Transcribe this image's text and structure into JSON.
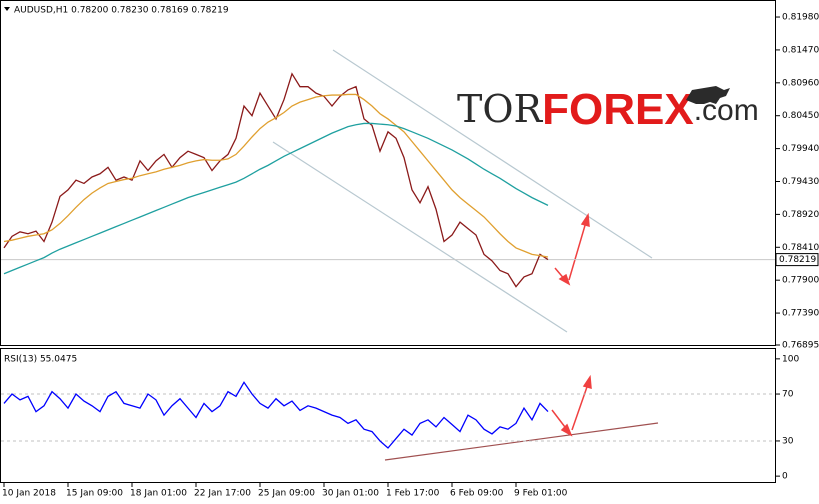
{
  "chart_data": [
    {
      "type": "line",
      "title": "AUDUSD,H1  0.78200 0.78230 0.78169 0.78219",
      "categories": [
        "10 Jan 2018",
        null,
        null,
        null,
        null,
        null,
        null,
        null,
        "15 Jan 09:00",
        null,
        null,
        null,
        null,
        null,
        null,
        null,
        "18 Jan 01:00",
        null,
        null,
        null,
        null,
        null,
        null,
        null,
        "22 Jan 17:00",
        null,
        null,
        null,
        null,
        null,
        null,
        null,
        "25 Jan 09:00",
        null,
        null,
        null,
        null,
        null,
        null,
        null,
        "30 Jan 01:00",
        null,
        null,
        null,
        null,
        null,
        null,
        null,
        "1 Feb 17:00",
        null,
        null,
        null,
        null,
        null,
        null,
        null,
        "6 Feb 09:00",
        null,
        null,
        null,
        null,
        null,
        null,
        null,
        "9 Feb 01:00",
        null,
        null,
        null,
        null
      ],
      "series": [
        {
          "color": "#8b1a1a",
          "values": [
            0.784,
            0.7858,
            0.7865,
            0.7862,
            0.7866,
            0.785,
            0.788,
            0.792,
            0.793,
            0.7945,
            0.794,
            0.795,
            0.7955,
            0.7965,
            0.7945,
            0.795,
            0.7945,
            0.7975,
            0.796,
            0.7975,
            0.7985,
            0.7965,
            0.798,
            0.799,
            0.7985,
            0.798,
            0.796,
            0.7975,
            0.7985,
            0.801,
            0.806,
            0.8045,
            0.808,
            0.806,
            0.804,
            0.807,
            0.811,
            0.809,
            0.809,
            0.808,
            0.8075,
            0.806,
            0.8075,
            0.8085,
            0.809,
            0.804,
            0.803,
            0.799,
            0.802,
            0.801,
            0.798,
            0.793,
            0.791,
            0.7935,
            0.79,
            0.785,
            0.786,
            0.788,
            0.787,
            0.786,
            0.783,
            0.782,
            0.7805,
            0.78,
            0.778,
            0.7795,
            0.78,
            0.783,
            0.7822
          ]
        },
        {
          "color": "#e0a030",
          "values": [
            0.785,
            0.7852,
            0.7855,
            0.7858,
            0.786,
            0.7862,
            0.7868,
            0.7878,
            0.789,
            0.7903,
            0.7915,
            0.7925,
            0.7933,
            0.794,
            0.7943,
            0.7946,
            0.7948,
            0.7952,
            0.7955,
            0.7958,
            0.7962,
            0.7965,
            0.7968,
            0.7972,
            0.7975,
            0.7977,
            0.7976,
            0.7976,
            0.7978,
            0.7985,
            0.7998,
            0.8012,
            0.8025,
            0.8035,
            0.8042,
            0.805,
            0.806,
            0.8066,
            0.807,
            0.8074,
            0.8076,
            0.8077,
            0.8077,
            0.8078,
            0.8078,
            0.807,
            0.806,
            0.8048,
            0.804,
            0.803,
            0.802,
            0.8005,
            0.799,
            0.7975,
            0.796,
            0.7945,
            0.793,
            0.7918,
            0.7908,
            0.7898,
            0.7888,
            0.7875,
            0.7862,
            0.785,
            0.784,
            0.7835,
            0.783,
            0.7828,
            0.7826
          ]
        },
        {
          "color": "#1fa0a0",
          "values": [
            0.78,
            0.7805,
            0.781,
            0.7815,
            0.782,
            0.7825,
            0.7832,
            0.7838,
            0.7843,
            0.7848,
            0.7853,
            0.7858,
            0.7863,
            0.7868,
            0.7873,
            0.7878,
            0.7883,
            0.7888,
            0.7893,
            0.7898,
            0.7903,
            0.7908,
            0.7913,
            0.7918,
            0.7922,
            0.7926,
            0.793,
            0.7934,
            0.7938,
            0.7942,
            0.7948,
            0.7955,
            0.7962,
            0.7968,
            0.7975,
            0.7982,
            0.7988,
            0.7994,
            0.8,
            0.8006,
            0.8012,
            0.8018,
            0.8023,
            0.8028,
            0.8031,
            0.8033,
            0.8033,
            0.8032,
            0.8031,
            0.8029,
            0.8025,
            0.802,
            0.8015,
            0.801,
            0.8004,
            0.7998,
            0.7992,
            0.7985,
            0.7978,
            0.797,
            0.7962,
            0.7955,
            0.7948,
            0.794,
            0.7932,
            0.7925,
            0.7918,
            0.7912,
            0.7906
          ]
        }
      ],
      "ylim": [
        0.76895,
        0.82213
      ],
      "yticks": [
        {
          "value": 0.8198,
          "label": "0.81980"
        },
        {
          "value": 0.8147,
          "label": "0.81470"
        },
        {
          "value": 0.8096,
          "label": "0.80960"
        },
        {
          "value": 0.8045,
          "label": "0.80450"
        },
        {
          "value": 0.7994,
          "label": "0.79940"
        },
        {
          "value": 0.7943,
          "label": "0.79430"
        },
        {
          "value": 0.7892,
          "label": "0.78920"
        },
        {
          "value": 0.7841,
          "label": "0.78410"
        },
        {
          "value": 0.779,
          "label": "0.77900"
        },
        {
          "value": 0.7739,
          "label": "0.77390"
        },
        0.76895
      ],
      "last_price": 0.78219,
      "watermark": [
        "TOR",
        "FOREX",
        ".com"
      ]
    },
    {
      "type": "line",
      "title": "RSI(13) 55.0475",
      "series": [
        {
          "color": "#0000ff",
          "values": [
            62,
            70,
            65,
            68,
            55,
            60,
            72,
            66,
            58,
            70,
            64,
            60,
            55,
            68,
            72,
            62,
            60,
            58,
            70,
            65,
            52,
            60,
            66,
            58,
            50,
            62,
            55,
            60,
            72,
            68,
            80,
            70,
            62,
            58,
            66,
            60,
            64,
            56,
            60,
            58,
            55,
            52,
            50,
            45,
            48,
            40,
            38,
            30,
            24,
            32,
            40,
            35,
            45,
            48,
            42,
            50,
            44,
            38,
            52,
            48,
            40,
            36,
            42,
            40,
            45,
            58,
            48,
            62,
            55.0475
          ]
        }
      ],
      "ylim": [
        -5,
        108.4
      ],
      "yticks": [
        100,
        70,
        30,
        0
      ],
      "levels": [
        70,
        30
      ]
    }
  ]
}
